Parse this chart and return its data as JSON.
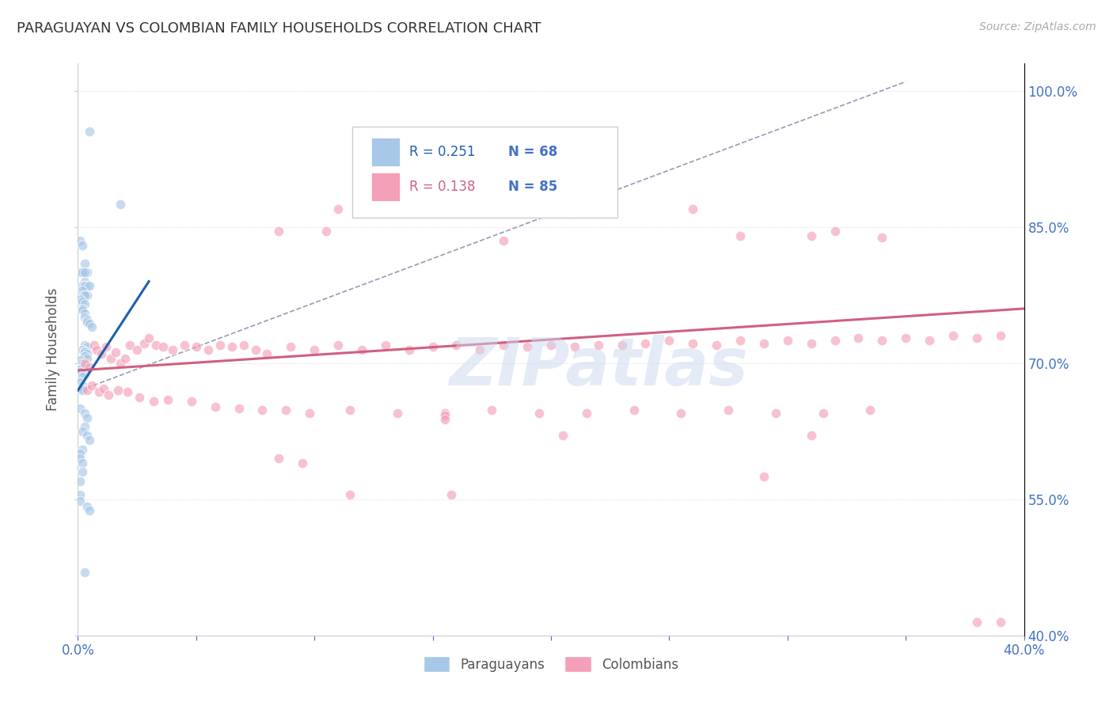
{
  "title": "PARAGUAYAN VS COLOMBIAN FAMILY HOUSEHOLDS CORRELATION CHART",
  "source": "Source: ZipAtlas.com",
  "ylabel": "Family Households",
  "xlim": [
    0.0,
    0.4
  ],
  "ylim": [
    0.4,
    1.03
  ],
  "xticks": [
    0.0,
    0.05,
    0.1,
    0.15,
    0.2,
    0.25,
    0.3,
    0.35,
    0.4
  ],
  "xticklabels": [
    "0.0%",
    "",
    "",
    "",
    "",
    "",
    "",
    "",
    "40.0%"
  ],
  "yticks": [
    0.4,
    0.55,
    0.7,
    0.85,
    1.0
  ],
  "yticklabels": [
    "40.0%",
    "55.0%",
    "70.0%",
    "85.0%",
    "100.0%"
  ],
  "watermark": "ZIPatlas",
  "legend_paraguayan": "Paraguayans",
  "legend_colombian": "Colombians",
  "r_paraguayan": "R = 0.251",
  "n_paraguayan": "N = 68",
  "r_colombian": "R = 0.138",
  "n_colombian": "N = 85",
  "blue_color": "#a8c8e8",
  "pink_color": "#f4a0b8",
  "blue_line_color": "#2060b0",
  "pink_line_color": "#d06080",
  "dashed_line_color": "#9999bb",
  "paraguayan_x": [
    0.005,
    0.018,
    0.001,
    0.002,
    0.003,
    0.001,
    0.004,
    0.002,
    0.003,
    0.003,
    0.002,
    0.004,
    0.003,
    0.005,
    0.002,
    0.003,
    0.004,
    0.003,
    0.001,
    0.002,
    0.003,
    0.002,
    0.002,
    0.003,
    0.003,
    0.004,
    0.004,
    0.005,
    0.006,
    0.003,
    0.004,
    0.002,
    0.003,
    0.003,
    0.004,
    0.003,
    0.004,
    0.001,
    0.002,
    0.003,
    0.002,
    0.001,
    0.001,
    0.003,
    0.002,
    0.001,
    0.001,
    0.002,
    0.002,
    0.002,
    0.001,
    0.003,
    0.004,
    0.003,
    0.002,
    0.004,
    0.005,
    0.002,
    0.001,
    0.001,
    0.002,
    0.002,
    0.001,
    0.001,
    0.001,
    0.004,
    0.005,
    0.003
  ],
  "paraguayan_y": [
    0.955,
    0.875,
    0.835,
    0.83,
    0.81,
    0.8,
    0.8,
    0.8,
    0.8,
    0.79,
    0.785,
    0.785,
    0.785,
    0.785,
    0.78,
    0.775,
    0.775,
    0.775,
    0.77,
    0.768,
    0.765,
    0.76,
    0.758,
    0.755,
    0.75,
    0.748,
    0.745,
    0.743,
    0.74,
    0.72,
    0.718,
    0.715,
    0.713,
    0.712,
    0.71,
    0.708,
    0.705,
    0.703,
    0.7,
    0.698,
    0.695,
    0.693,
    0.69,
    0.688,
    0.685,
    0.68,
    0.678,
    0.675,
    0.672,
    0.67,
    0.65,
    0.645,
    0.64,
    0.63,
    0.625,
    0.62,
    0.615,
    0.605,
    0.6,
    0.595,
    0.59,
    0.58,
    0.57,
    0.555,
    0.548,
    0.542,
    0.538,
    0.47
  ],
  "colombian_x": [
    0.003,
    0.005,
    0.007,
    0.008,
    0.01,
    0.012,
    0.014,
    0.016,
    0.018,
    0.02,
    0.022,
    0.025,
    0.028,
    0.03,
    0.033,
    0.036,
    0.04,
    0.045,
    0.05,
    0.055,
    0.06,
    0.065,
    0.07,
    0.075,
    0.08,
    0.09,
    0.1,
    0.11,
    0.12,
    0.13,
    0.14,
    0.15,
    0.16,
    0.17,
    0.18,
    0.19,
    0.2,
    0.21,
    0.22,
    0.23,
    0.24,
    0.25,
    0.26,
    0.27,
    0.28,
    0.29,
    0.3,
    0.31,
    0.32,
    0.33,
    0.34,
    0.35,
    0.36,
    0.37,
    0.38,
    0.39,
    0.004,
    0.006,
    0.009,
    0.011,
    0.013,
    0.017,
    0.021,
    0.026,
    0.032,
    0.038,
    0.048,
    0.058,
    0.068,
    0.078,
    0.088,
    0.098,
    0.115,
    0.135,
    0.155,
    0.175,
    0.195,
    0.215,
    0.235,
    0.255,
    0.275,
    0.295,
    0.315,
    0.335,
    0.39
  ],
  "colombian_y": [
    0.7,
    0.695,
    0.72,
    0.715,
    0.71,
    0.718,
    0.705,
    0.712,
    0.7,
    0.705,
    0.72,
    0.715,
    0.722,
    0.728,
    0.72,
    0.718,
    0.715,
    0.72,
    0.718,
    0.715,
    0.72,
    0.718,
    0.72,
    0.715,
    0.71,
    0.718,
    0.715,
    0.72,
    0.715,
    0.72,
    0.715,
    0.718,
    0.72,
    0.715,
    0.72,
    0.718,
    0.72,
    0.718,
    0.72,
    0.72,
    0.722,
    0.725,
    0.722,
    0.72,
    0.725,
    0.722,
    0.725,
    0.722,
    0.725,
    0.728,
    0.725,
    0.728,
    0.725,
    0.73,
    0.728,
    0.73,
    0.67,
    0.675,
    0.668,
    0.672,
    0.665,
    0.67,
    0.668,
    0.662,
    0.658,
    0.66,
    0.658,
    0.652,
    0.65,
    0.648,
    0.648,
    0.645,
    0.648,
    0.645,
    0.645,
    0.648,
    0.645,
    0.645,
    0.648,
    0.645,
    0.648,
    0.645,
    0.645,
    0.648,
    0.415
  ],
  "colombian_outliers_x": [
    0.26,
    0.32,
    0.28,
    0.34,
    0.11,
    0.21,
    0.085,
    0.105,
    0.31,
    0.18,
    0.155,
    0.155,
    0.158
  ],
  "colombian_outliers_y": [
    0.87,
    0.845,
    0.84,
    0.838,
    0.87,
    0.865,
    0.845,
    0.845,
    0.84,
    0.835,
    0.642,
    0.638,
    0.555
  ],
  "colombian_low_x": [
    0.085,
    0.095,
    0.205,
    0.38,
    0.115,
    0.31,
    0.29
  ],
  "colombian_low_y": [
    0.595,
    0.59,
    0.62,
    0.415,
    0.555,
    0.62,
    0.575
  ],
  "blue_trendline_x": [
    0.0,
    0.03
  ],
  "blue_trendline_y": [
    0.67,
    0.79
  ],
  "pink_trendline_x": [
    0.0,
    0.4
  ],
  "pink_trendline_y": [
    0.692,
    0.76
  ],
  "dashed_line_x": [
    0.001,
    0.35
  ],
  "dashed_line_y": [
    0.67,
    1.01
  ],
  "background_color": "#ffffff",
  "grid_color": "#dddddd",
  "title_color": "#333333",
  "axis_label_color": "#555555",
  "right_label_color": "#4472c4",
  "marker_size": 80,
  "alpha": 0.65
}
